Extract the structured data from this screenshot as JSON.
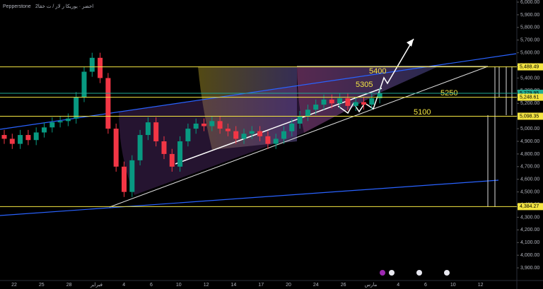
{
  "chart_data": {
    "type": "candlestick",
    "source": "Pepperstone",
    "subtitle": "2اخضر · يوريكا ر لار / ت خقا",
    "x_labels": [
      "22",
      "25",
      "28",
      "فبراير",
      "4",
      "6",
      "10",
      "12",
      "14",
      "17",
      "20",
      "24",
      "26",
      "مارس",
      "4",
      "6",
      "10",
      "12"
    ],
    "open": [
      4950,
      4920,
      4880,
      4950,
      4910,
      4970,
      5010,
      5050,
      5060,
      5080,
      5250,
      5450,
      5560,
      5400,
      5000,
      4700,
      4500,
      4750,
      4950,
      5050,
      4900,
      4800,
      4700,
      4900,
      5000,
      5040,
      5020,
      5060,
      5000,
      4980,
      4920,
      4960,
      4980,
      4940,
      4880,
      4920,
      4980,
      5040,
      5100,
      5150,
      5190,
      5230,
      5200,
      5240,
      5180,
      5210,
      5190,
      5240
    ],
    "high": [
      4990,
      4960,
      4990,
      4990,
      5010,
      5050,
      5090,
      5100,
      5120,
      5290,
      5490,
      5600,
      5600,
      5440,
      5040,
      4740,
      4790,
      4990,
      5090,
      5090,
      4940,
      4840,
      4940,
      5040,
      5080,
      5080,
      5100,
      5100,
      5040,
      5020,
      5000,
      5020,
      5020,
      4980,
      4960,
      5020,
      5080,
      5140,
      5190,
      5230,
      5270,
      5270,
      5280,
      5280,
      5250,
      5250,
      5280,
      5320
    ],
    "low": [
      4880,
      4840,
      4840,
      4870,
      4870,
      4930,
      4970,
      5010,
      5020,
      5040,
      5210,
      5410,
      5360,
      4960,
      4660,
      4460,
      4460,
      4710,
      4910,
      4860,
      4760,
      4660,
      4660,
      4860,
      4960,
      4980,
      4980,
      4960,
      4940,
      4880,
      4880,
      4920,
      4900,
      4840,
      4840,
      4880,
      4940,
      5000,
      5060,
      5110,
      5150,
      5160,
      5160,
      5140,
      5140,
      5150,
      5150,
      5200
    ],
    "close": [
      4920,
      4880,
      4950,
      4910,
      4970,
      5010,
      5050,
      5060,
      5080,
      5250,
      5450,
      5560,
      5400,
      5000,
      4700,
      4500,
      4750,
      4950,
      5050,
      4900,
      4800,
      4700,
      4900,
      5000,
      5040,
      5020,
      5060,
      5000,
      4980,
      4920,
      4960,
      4980,
      4940,
      4880,
      4920,
      4980,
      5040,
      5100,
      5150,
      5190,
      5230,
      5200,
      5240,
      5180,
      5210,
      5190,
      5240,
      5280
    ],
    "up_color": "#089981",
    "down_color": "#f23645",
    "ylim": [
      3800,
      6000
    ],
    "yticks": [
      {
        "value": 3900,
        "label": "3,900.00"
      },
      {
        "value": 4000,
        "label": "4,000.00"
      },
      {
        "value": 4100,
        "label": "4,100.00"
      },
      {
        "value": 4200,
        "label": "4,200.00"
      },
      {
        "value": 4300,
        "label": "4,300.00"
      },
      {
        "value": 4400,
        "label": "4,400.00"
      },
      {
        "value": 4500,
        "label": "4,500.00"
      },
      {
        "value": 4600,
        "label": "4,600.00"
      },
      {
        "value": 4700,
        "label": "4,700.00"
      },
      {
        "value": 4800,
        "label": "4,800.00"
      },
      {
        "value": 4900,
        "label": "4,900.00"
      },
      {
        "value": 5000,
        "label": "5,000.00"
      },
      {
        "value": 5100,
        "label": "5,100.00"
      },
      {
        "value": 5200,
        "label": "5,200.00"
      },
      {
        "value": 5300,
        "label": "5,300.00"
      },
      {
        "value": 5400,
        "label": "5,400.00"
      },
      {
        "value": 5500,
        "label": "5,500.00"
      },
      {
        "value": 5600,
        "label": "5,600.00"
      },
      {
        "value": 5700,
        "label": "5,700.00"
      },
      {
        "value": 5800,
        "label": "5,800.00"
      },
      {
        "value": 5900,
        "label": "5,900.00"
      },
      {
        "value": 6000,
        "label": "6,000.00"
      }
    ],
    "levels": [
      {
        "value": 5488.49,
        "label": "5,488.49",
        "color": "#f5e642"
      },
      {
        "value": 5279.95,
        "label": "5,279.95",
        "color": "#22ab94"
      },
      {
        "value": 5248.61,
        "label": "5,248.61",
        "color": "#f5e642"
      },
      {
        "value": 5098.35,
        "label": "5,098.35",
        "color": "#f5e642"
      },
      {
        "value": 4384.27,
        "label": "4,384.27",
        "color": "#f5e642"
      }
    ],
    "annotations": [
      "5400",
      "5305",
      "5250",
      "5100"
    ]
  }
}
